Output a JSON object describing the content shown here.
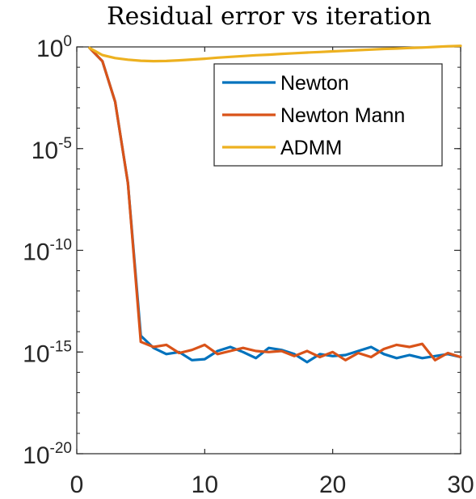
{
  "chart_data": {
    "type": "line",
    "title": "Residual error vs iteration",
    "xlabel": "",
    "ylabel": "",
    "xlim": [
      0,
      30
    ],
    "ylim_log10": [
      -20,
      0
    ],
    "y_scale": "log",
    "x_ticks": [
      0,
      10,
      20,
      30
    ],
    "y_ticks": [
      {
        "base": "10",
        "exp": "0",
        "value": 0
      },
      {
        "base": "10",
        "exp": "-5",
        "value": -5
      },
      {
        "base": "10",
        "exp": "-10",
        "value": -10
      },
      {
        "base": "10",
        "exp": "-15",
        "value": -15
      },
      {
        "base": "10",
        "exp": "-20",
        "value": -20
      }
    ],
    "grid": false,
    "legend_position": "top-right",
    "series": [
      {
        "name": "Newton",
        "color": "#0072BD",
        "x": [
          1,
          2,
          3,
          4,
          5,
          6,
          7,
          8,
          9,
          10,
          11,
          12,
          13,
          14,
          15,
          16,
          17,
          18,
          19,
          20,
          21,
          22,
          23,
          24,
          25,
          26,
          27,
          28,
          29,
          30
        ],
        "log10_y": [
          -0.05,
          -0.7,
          -2.7,
          -6.7,
          -14.2,
          -14.8,
          -15.1,
          -15.0,
          -15.4,
          -15.35,
          -14.95,
          -14.75,
          -15.0,
          -15.3,
          -14.8,
          -14.9,
          -15.1,
          -15.5,
          -15.1,
          -15.2,
          -15.15,
          -14.95,
          -14.75,
          -15.1,
          -15.3,
          -15.15,
          -15.3,
          -15.2,
          -15.1,
          -15.25
        ]
      },
      {
        "name": "Newton Mann",
        "color": "#D95319",
        "x": [
          1,
          2,
          3,
          4,
          5,
          6,
          7,
          8,
          9,
          10,
          11,
          12,
          13,
          14,
          15,
          16,
          17,
          18,
          19,
          20,
          21,
          22,
          23,
          24,
          25,
          26,
          27,
          28,
          29,
          30
        ],
        "log10_y": [
          -0.05,
          -0.7,
          -2.7,
          -6.7,
          -14.5,
          -14.75,
          -14.65,
          -15.05,
          -14.9,
          -14.65,
          -15.1,
          -14.95,
          -14.8,
          -14.95,
          -15.0,
          -14.95,
          -15.2,
          -14.95,
          -15.25,
          -15.0,
          -15.4,
          -15.05,
          -15.25,
          -14.85,
          -14.65,
          -14.75,
          -14.6,
          -15.4,
          -15.05,
          -15.25
        ]
      },
      {
        "name": "ADMM",
        "color": "#EDB120",
        "x": [
          1,
          2,
          3,
          4,
          5,
          6,
          7,
          8,
          9,
          10,
          11,
          12,
          13,
          14,
          15,
          16,
          17,
          18,
          19,
          20,
          21,
          22,
          23,
          24,
          25,
          26,
          27,
          28,
          29,
          30
        ],
        "log10_y": [
          -0.05,
          -0.4,
          -0.55,
          -0.63,
          -0.68,
          -0.7,
          -0.69,
          -0.66,
          -0.62,
          -0.58,
          -0.53,
          -0.49,
          -0.45,
          -0.41,
          -0.38,
          -0.34,
          -0.31,
          -0.28,
          -0.25,
          -0.22,
          -0.19,
          -0.16,
          -0.13,
          -0.1,
          -0.08,
          -0.05,
          -0.03,
          0.0,
          0.03,
          0.05
        ]
      }
    ]
  }
}
